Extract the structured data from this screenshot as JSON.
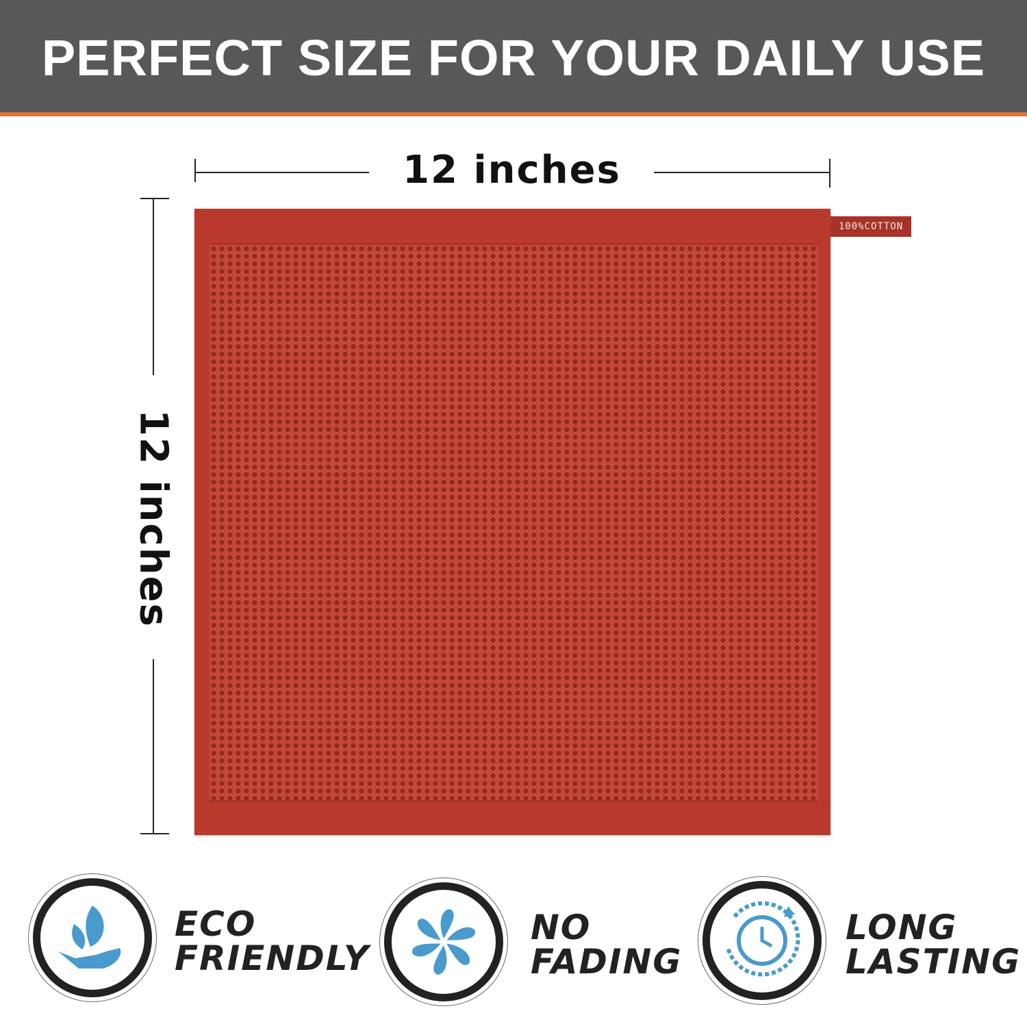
{
  "banner": {
    "title": "PERFECT SIZE FOR YOUR DAILY USE"
  },
  "dimensions": {
    "width_label": "12 inches",
    "height_label": "12 inches"
  },
  "product": {
    "tag_text": "100%COTTON",
    "color": "#b93a2d"
  },
  "features": [
    {
      "icon": "leaf-hand-icon",
      "line1": "ECO",
      "line2": "FRIENDLY"
    },
    {
      "icon": "pinwheel-icon",
      "line1": "NO",
      "line2": "FADING"
    },
    {
      "icon": "clock-cycle-icon",
      "line1": "LONG",
      "line2": "LASTING"
    }
  ],
  "colors": {
    "banner": "#585858",
    "accent": "#e0733a",
    "icon_blue": "#4a9acd"
  }
}
